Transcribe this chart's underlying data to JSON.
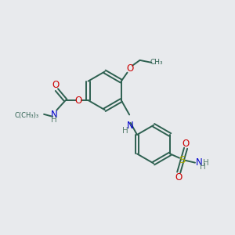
{
  "bg_color": "#e8eaed",
  "bond_color": "#2d6050",
  "atom_colors": {
    "O": "#cc0000",
    "N": "#0000cc",
    "S": "#aaaa00",
    "H": "#5a8070",
    "C": "#2d6050"
  },
  "figsize": [
    3.0,
    3.0
  ],
  "dpi": 100,
  "lw": 1.4,
  "fs": 8.5
}
